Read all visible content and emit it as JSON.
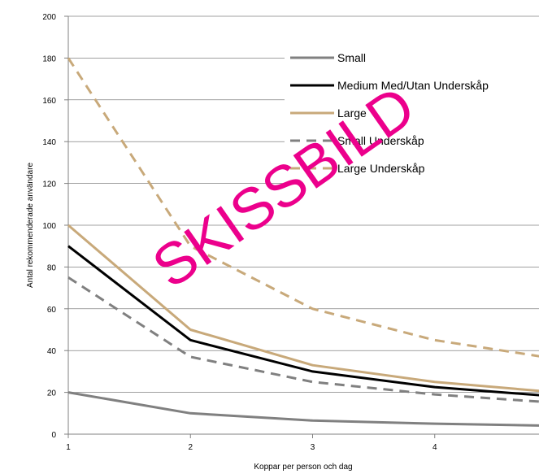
{
  "chart_data": {
    "type": "line",
    "x": [
      1,
      2,
      3,
      4,
      5
    ],
    "xlabel": "Koppar per person och dag",
    "ylabel": "Antal rekommenderade användare",
    "ylim": [
      0,
      200
    ],
    "yticks": [
      0,
      20,
      40,
      60,
      80,
      100,
      120,
      140,
      160,
      180,
      200
    ],
    "xticks": [
      1,
      2,
      3,
      4
    ],
    "grid": "horizontal",
    "legend_position": "top-right",
    "series": [
      {
        "name": "Small",
        "values": [
          20,
          10,
          6.5,
          5,
          4
        ],
        "color": "#808080",
        "style": "solid"
      },
      {
        "name": "Medium Med/Utan Underskåp",
        "values": [
          90,
          45,
          30,
          22.5,
          18
        ],
        "color": "#000000",
        "style": "solid"
      },
      {
        "name": "Large",
        "values": [
          100,
          50,
          33,
          25,
          20
        ],
        "color": "#c8a97a",
        "style": "solid"
      },
      {
        "name": "Small Underskåp",
        "values": [
          75,
          37,
          25,
          19,
          15
        ],
        "color": "#808080",
        "style": "dashed"
      },
      {
        "name": "Large Underskåp",
        "values": [
          180,
          90,
          60,
          45,
          36
        ],
        "color": "#c8a97a",
        "style": "dashed"
      }
    ],
    "watermark": "SKISSBILD"
  }
}
